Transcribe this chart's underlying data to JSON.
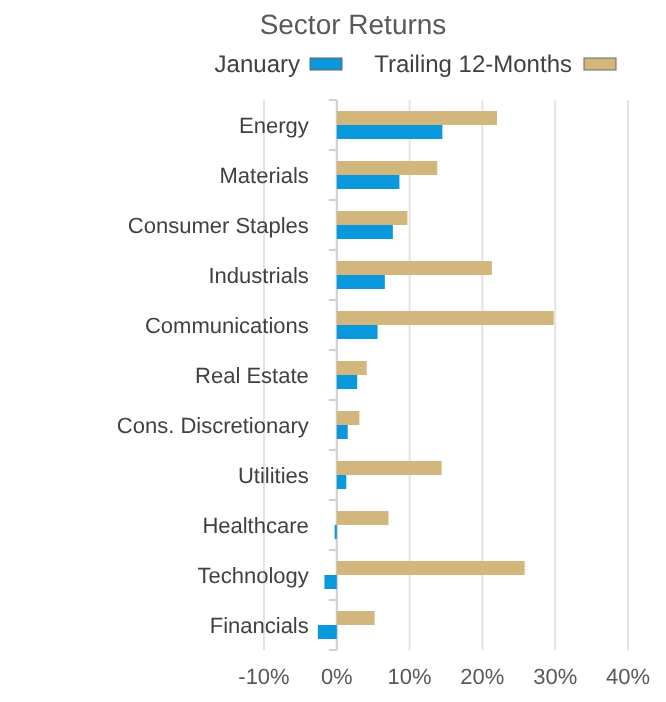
{
  "chart_data": {
    "type": "bar",
    "orientation": "horizontal",
    "title": "Sector Returns",
    "categories": [
      "Energy",
      "Materials",
      "Consumer Staples",
      "Industrials",
      "Communications",
      "Real Estate",
      "Cons. Discretionary",
      "Utilities",
      "Healthcare",
      "Technology",
      "Financials"
    ],
    "series": [
      {
        "name": "January",
        "color": "#0a98dc",
        "values": [
          14.5,
          8.6,
          7.7,
          6.6,
          5.6,
          2.8,
          1.5,
          1.3,
          -0.3,
          -1.7,
          -2.6
        ]
      },
      {
        "name": "Trailing 12-Months",
        "color": "#d3b67b",
        "values": [
          22.0,
          13.8,
          9.7,
          21.3,
          29.8,
          4.1,
          3.1,
          14.4,
          7.1,
          25.8,
          5.2
        ]
      }
    ],
    "xlim": [
      -10,
      40
    ],
    "xticks": [
      {
        "value": -10,
        "label": "-10%"
      },
      {
        "value": 0,
        "label": "0%"
      },
      {
        "value": 10,
        "label": "10%"
      },
      {
        "value": 20,
        "label": "20%"
      },
      {
        "value": 30,
        "label": "30%"
      },
      {
        "value": 40,
        "label": "40%"
      }
    ],
    "grid": "x",
    "legend": "top"
  }
}
